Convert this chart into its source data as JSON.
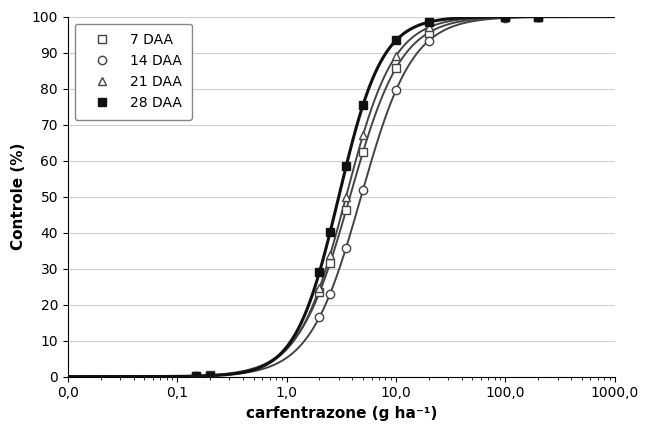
{
  "title": "",
  "xlabel": "carfentrazone (g ha⁻¹)",
  "ylabel": "Controle (%)",
  "ylim": [
    0,
    100
  ],
  "series": [
    {
      "label": "7 DAA",
      "marker": "s",
      "marker_fill": "white",
      "color": "#444444",
      "linewidth": 1.4,
      "b": 1.85,
      "c": 100,
      "e": 3.8
    },
    {
      "label": "14 DAA",
      "marker": "o",
      "marker_fill": "white",
      "color": "#444444",
      "linewidth": 1.4,
      "b": 1.85,
      "c": 100,
      "e": 4.8
    },
    {
      "label": "21 DAA",
      "marker": "^",
      "marker_fill": "white",
      "color": "#444444",
      "linewidth": 1.4,
      "b": 2.0,
      "c": 100,
      "e": 3.5
    },
    {
      "label": "28 DAA",
      "marker": "s",
      "marker_fill": "#111111",
      "color": "#111111",
      "linewidth": 2.2,
      "b": 2.2,
      "c": 100,
      "e": 3.0
    }
  ],
  "data_points_x": [
    0.15,
    0.2,
    2.0,
    2.5,
    3.5,
    5.0,
    10.0,
    20.0,
    100.0,
    200.0
  ],
  "xtick_labels": [
    "0,0",
    "0,1",
    "1,0",
    "10,0",
    "100,0",
    "1000,0"
  ],
  "xtick_values": [
    0.01,
    0.1,
    1.0,
    10.0,
    100.0,
    1000.0
  ],
  "legend_loc": "upper left",
  "bg_color": "#ffffff",
  "grid_color": "#cccccc",
  "marker_size": 6
}
